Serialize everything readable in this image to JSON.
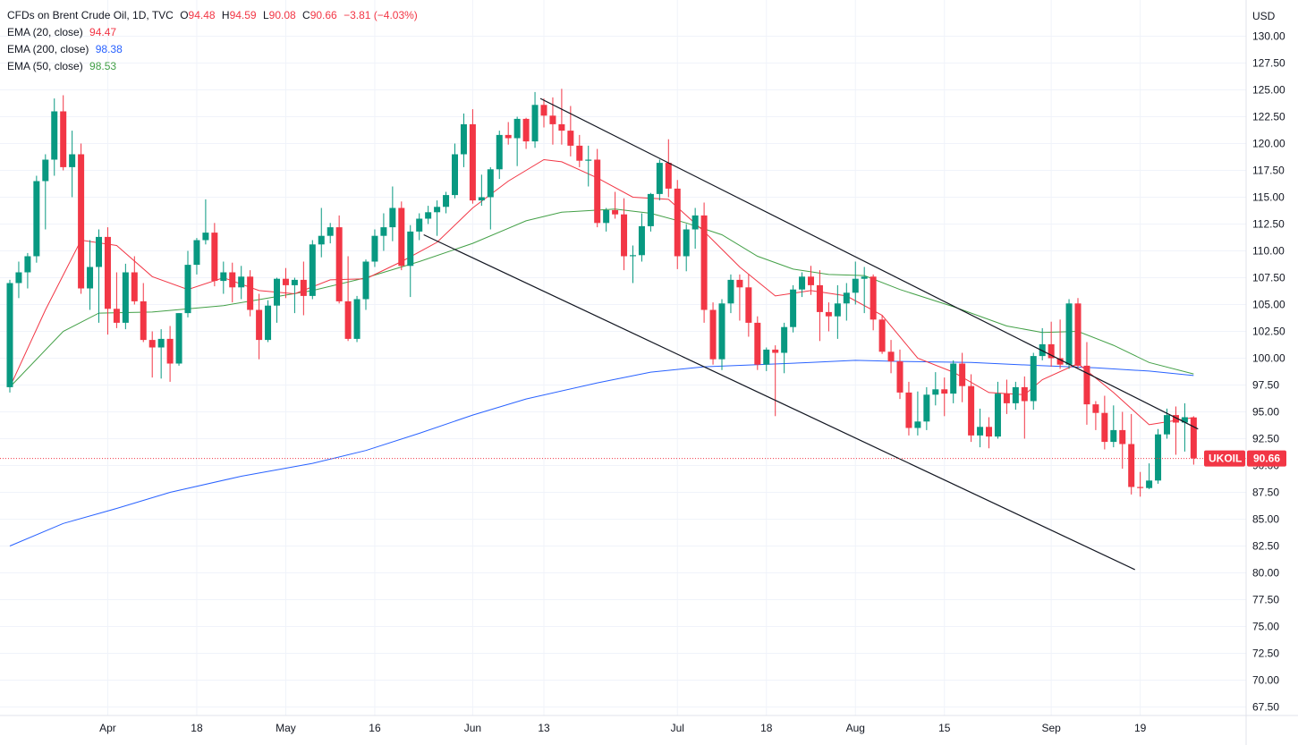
{
  "header": {
    "symbol": "CFDs on Brent Crude Oil, 1D, TVC",
    "ohlc": [
      {
        "k": "O",
        "v": "94.48"
      },
      {
        "k": "H",
        "v": "94.59"
      },
      {
        "k": "L",
        "v": "90.08"
      },
      {
        "k": "C",
        "v": "90.66"
      }
    ],
    "change": "−3.81 (−4.03%)"
  },
  "indicators": [
    {
      "label": "EMA (20, close)",
      "value": "94.47",
      "color": "#f23645"
    },
    {
      "label": "EMA (200, close)",
      "value": "98.38",
      "color": "#2962ff"
    },
    {
      "label": "EMA (50, close)",
      "value": "98.53",
      "color": "#43a047"
    }
  ],
  "price_tag": {
    "symbol": "UKOIL",
    "value": "90.66"
  },
  "chart_data": {
    "type": "candlestick",
    "currency": "USD",
    "ylim": [
      66.5,
      131
    ],
    "y_ticks": [
      "67.50",
      "70.00",
      "72.50",
      "75.00",
      "77.50",
      "80.00",
      "82.50",
      "85.00",
      "87.50",
      "90.00",
      "92.50",
      "95.00",
      "97.50",
      "100.00",
      "102.50",
      "105.00",
      "107.50",
      "110.00",
      "112.50",
      "115.00",
      "117.50",
      "120.00",
      "122.50",
      "125.00",
      "127.50",
      "130.00"
    ],
    "x_ticks": [
      {
        "label": "Apr",
        "i": 11
      },
      {
        "label": "18",
        "i": 21
      },
      {
        "label": "May",
        "i": 31
      },
      {
        "label": "16",
        "i": 41
      },
      {
        "label": "Jun",
        "i": 52
      },
      {
        "label": "13",
        "i": 60
      },
      {
        "label": "Jul",
        "i": 75
      },
      {
        "label": "18",
        "i": 85
      },
      {
        "label": "Aug",
        "i": 95
      },
      {
        "label": "15",
        "i": 105
      },
      {
        "label": "Sep",
        "i": 117
      },
      {
        "label": "19",
        "i": 127
      }
    ],
    "candles": [
      [
        0,
        97.3,
        107.3,
        96.8,
        107.0
      ],
      [
        1,
        107.0,
        109.0,
        105.6,
        108.0
      ],
      [
        2,
        108.0,
        109.8,
        106.5,
        109.5
      ],
      [
        3,
        109.5,
        117.0,
        108.9,
        116.5
      ],
      [
        4,
        116.5,
        119.0,
        112.0,
        118.5
      ],
      [
        5,
        118.5,
        124.2,
        117.0,
        123.0
      ],
      [
        6,
        123.0,
        124.5,
        117.5,
        117.8
      ],
      [
        7,
        117.8,
        121.2,
        115.0,
        119.0
      ],
      [
        8,
        119.0,
        120.0,
        106.0,
        106.5
      ],
      [
        9,
        106.5,
        111.0,
        104.5,
        108.5
      ],
      [
        10,
        108.5,
        112.0,
        103.3,
        111.3
      ],
      [
        11,
        111.3,
        112.2,
        102.2,
        104.6
      ],
      [
        12,
        104.6,
        108.0,
        102.8,
        103.3
      ],
      [
        13,
        103.3,
        108.8,
        102.7,
        108.0
      ],
      [
        14,
        108.0,
        109.5,
        105.0,
        105.3
      ],
      [
        15,
        105.3,
        107.0,
        101.5,
        101.7
      ],
      [
        16,
        101.7,
        102.5,
        98.2,
        101.0
      ],
      [
        17,
        101.0,
        102.7,
        98.1,
        101.8
      ],
      [
        18,
        101.8,
        103.0,
        97.8,
        99.5
      ],
      [
        19,
        99.5,
        104.2,
        99.3,
        104.2
      ],
      [
        20,
        104.2,
        110.0,
        103.8,
        108.7
      ],
      [
        21,
        108.7,
        111.2,
        107.8,
        111.0
      ],
      [
        22,
        111.0,
        114.8,
        110.6,
        111.7
      ],
      [
        23,
        111.7,
        112.6,
        106.7,
        107.2
      ],
      [
        24,
        107.2,
        109.0,
        106.0,
        108.0
      ],
      [
        25,
        108.0,
        108.9,
        105.2,
        106.6
      ],
      [
        26,
        106.6,
        108.6,
        105.5,
        107.6
      ],
      [
        27,
        107.6,
        108.2,
        103.9,
        104.5
      ],
      [
        28,
        104.5,
        106.0,
        99.9,
        101.7
      ],
      [
        29,
        101.7,
        105.4,
        101.5,
        104.9
      ],
      [
        30,
        104.9,
        107.5,
        103.3,
        107.4
      ],
      [
        31,
        107.4,
        108.4,
        105.6,
        106.8
      ],
      [
        32,
        106.8,
        107.5,
        104.2,
        107.3
      ],
      [
        33,
        107.3,
        109.0,
        104.0,
        105.8
      ],
      [
        34,
        105.8,
        111.0,
        105.5,
        110.6
      ],
      [
        35,
        110.6,
        114.0,
        109.4,
        111.4
      ],
      [
        36,
        111.4,
        112.6,
        110.7,
        112.2
      ],
      [
        37,
        112.2,
        113.3,
        105.1,
        105.3
      ],
      [
        38,
        105.3,
        109.5,
        101.6,
        101.8
      ],
      [
        39,
        101.8,
        105.8,
        101.5,
        105.5
      ],
      [
        40,
        105.5,
        109.2,
        104.5,
        109.0
      ],
      [
        41,
        109.0,
        112.0,
        108.5,
        111.4
      ],
      [
        42,
        111.4,
        113.5,
        110.0,
        112.2
      ],
      [
        43,
        112.2,
        116.0,
        110.9,
        114.0
      ],
      [
        44,
        114.0,
        114.6,
        108.2,
        108.6
      ],
      [
        45,
        108.6,
        112.4,
        105.7,
        111.8
      ],
      [
        46,
        111.8,
        113.5,
        111.0,
        113.0
      ],
      [
        47,
        113.0,
        114.2,
        112.5,
        113.6
      ],
      [
        48,
        113.6,
        114.7,
        111.4,
        114.1
      ],
      [
        49,
        114.1,
        115.5,
        113.5,
        115.2
      ],
      [
        50,
        115.2,
        120.0,
        114.9,
        119.0
      ],
      [
        51,
        119.0,
        122.8,
        117.8,
        121.8
      ],
      [
        52,
        121.8,
        123.2,
        114.4,
        114.7
      ],
      [
        53,
        114.7,
        117.1,
        114.2,
        115.0
      ],
      [
        54,
        115.0,
        117.8,
        112.0,
        117.6
      ],
      [
        55,
        117.6,
        121.2,
        116.7,
        120.8
      ],
      [
        56,
        120.8,
        122.0,
        119.9,
        120.5
      ],
      [
        57,
        120.5,
        122.5,
        117.9,
        122.3
      ],
      [
        58,
        122.3,
        122.4,
        119.5,
        120.2
      ],
      [
        59,
        120.2,
        124.8,
        119.6,
        123.6
      ],
      [
        60,
        123.6,
        124.2,
        121.5,
        122.6
      ],
      [
        61,
        122.6,
        124.3,
        119.9,
        121.8
      ],
      [
        62,
        121.8,
        125.1,
        119.9,
        121.2
      ],
      [
        63,
        121.2,
        123.5,
        118.8,
        119.8
      ],
      [
        64,
        119.8,
        120.8,
        117.8,
        118.4
      ],
      [
        65,
        118.4,
        119.8,
        116.0,
        118.5
      ],
      [
        66,
        118.5,
        119.5,
        112.2,
        112.6
      ],
      [
        67,
        112.6,
        114.0,
        111.8,
        113.8
      ],
      [
        68,
        113.8,
        115.5,
        113.0,
        113.4
      ],
      [
        69,
        113.4,
        114.9,
        108.2,
        109.5
      ],
      [
        70,
        109.5,
        110.5,
        107.0,
        109.6
      ],
      [
        71,
        109.6,
        113.5,
        109.0,
        112.3
      ],
      [
        72,
        112.3,
        115.4,
        111.8,
        115.3
      ],
      [
        73,
        115.3,
        118.5,
        114.7,
        118.2
      ],
      [
        74,
        118.2,
        120.4,
        115.0,
        115.8
      ],
      [
        75,
        115.8,
        116.6,
        108.3,
        109.5
      ],
      [
        76,
        109.5,
        112.5,
        108.1,
        112.0
      ],
      [
        77,
        112.0,
        114.0,
        110.2,
        113.3
      ],
      [
        78,
        113.3,
        114.5,
        103.3,
        104.5
      ],
      [
        79,
        104.5,
        105.2,
        99.4,
        99.9
      ],
      [
        80,
        99.9,
        105.5,
        98.9,
        105.1
      ],
      [
        81,
        105.1,
        107.8,
        104.2,
        107.3
      ],
      [
        82,
        107.3,
        107.8,
        103.5,
        106.6
      ],
      [
        83,
        106.6,
        107.8,
        102.0,
        103.3
      ],
      [
        84,
        103.3,
        103.9,
        98.9,
        99.4
      ],
      [
        85,
        99.4,
        101.0,
        98.8,
        100.8
      ],
      [
        86,
        100.8,
        101.2,
        94.6,
        100.5
      ],
      [
        87,
        100.5,
        103.3,
        98.6,
        102.9
      ],
      [
        88,
        102.9,
        106.8,
        102.4,
        106.4
      ],
      [
        89,
        106.4,
        108.0,
        105.7,
        107.6
      ],
      [
        90,
        107.6,
        108.6,
        105.9,
        106.8
      ],
      [
        91,
        106.8,
        108.2,
        101.6,
        104.3
      ],
      [
        92,
        104.3,
        105.2,
        102.5,
        103.9
      ],
      [
        93,
        103.9,
        106.8,
        101.8,
        105.1
      ],
      [
        94,
        105.1,
        107.0,
        103.5,
        106.1
      ],
      [
        95,
        106.1,
        109.0,
        105.0,
        107.4
      ],
      [
        96,
        107.4,
        108.5,
        104.2,
        107.6
      ],
      [
        97,
        107.6,
        107.8,
        102.6,
        103.6
      ],
      [
        98,
        103.6,
        104.0,
        100.4,
        100.6
      ],
      [
        99,
        100.6,
        101.7,
        98.6,
        99.7
      ],
      [
        100,
        99.7,
        100.8,
        96.2,
        96.8
      ],
      [
        101,
        96.8,
        97.8,
        92.8,
        93.5
      ],
      [
        102,
        93.5,
        96.9,
        92.8,
        94.1
      ],
      [
        103,
        94.1,
        97.3,
        93.3,
        96.6
      ],
      [
        104,
        96.6,
        98.7,
        95.6,
        97.1
      ],
      [
        105,
        97.1,
        98.2,
        94.6,
        96.7
      ],
      [
        106,
        96.7,
        99.8,
        95.8,
        99.5
      ],
      [
        107,
        99.5,
        100.5,
        95.9,
        97.4
      ],
      [
        108,
        97.4,
        98.5,
        92.2,
        92.8
      ],
      [
        109,
        92.8,
        95.3,
        91.7,
        93.6
      ],
      [
        110,
        93.6,
        94.5,
        91.6,
        92.7
      ],
      [
        111,
        92.7,
        97.8,
        92.5,
        96.7
      ],
      [
        112,
        96.7,
        98.0,
        94.8,
        95.8
      ],
      [
        113,
        95.8,
        97.8,
        95.2,
        97.3
      ],
      [
        114,
        97.3,
        98.3,
        92.5,
        96.0
      ],
      [
        115,
        96.0,
        100.5,
        95.2,
        100.2
      ],
      [
        116,
        100.2,
        102.8,
        99.8,
        101.3
      ],
      [
        117,
        101.3,
        103.4,
        99.2,
        100.0
      ],
      [
        118,
        100.0,
        103.6,
        99.0,
        99.4
      ],
      [
        119,
        99.4,
        105.5,
        99.0,
        105.1
      ],
      [
        120,
        105.1,
        105.6,
        99.1,
        99.3
      ],
      [
        121,
        99.3,
        101.5,
        93.8,
        95.7
      ],
      [
        122,
        95.7,
        96.0,
        93.3,
        94.9
      ],
      [
        123,
        94.9,
        96.5,
        91.5,
        92.2
      ],
      [
        124,
        92.2,
        95.6,
        91.7,
        93.3
      ],
      [
        125,
        93.3,
        95.0,
        89.7,
        92.0
      ],
      [
        126,
        92.0,
        94.8,
        87.3,
        88.0
      ],
      [
        127,
        88.0,
        89.4,
        87.1,
        87.9
      ],
      [
        128,
        87.9,
        90.2,
        87.8,
        88.6
      ],
      [
        129,
        88.6,
        93.4,
        88.3,
        92.9
      ],
      [
        130,
        92.9,
        95.3,
        92.5,
        94.7
      ],
      [
        131,
        94.7,
        95.5,
        91.0,
        94.0
      ],
      [
        132,
        94.0,
        95.8,
        91.3,
        94.5
      ],
      [
        133,
        94.48,
        94.59,
        90.08,
        90.66
      ]
    ],
    "ema20": [
      [
        0,
        97.3
      ],
      [
        4,
        104.5
      ],
      [
        8,
        111.0
      ],
      [
        12,
        110.5
      ],
      [
        16,
        107.6
      ],
      [
        20,
        106.4
      ],
      [
        24,
        107.5
      ],
      [
        28,
        106.3
      ],
      [
        32,
        106.0
      ],
      [
        36,
        107.3
      ],
      [
        40,
        107.4
      ],
      [
        44,
        109.0
      ],
      [
        48,
        110.8
      ],
      [
        52,
        114.0
      ],
      [
        56,
        116.5
      ],
      [
        60,
        118.5
      ],
      [
        62,
        118.3
      ],
      [
        66,
        116.8
      ],
      [
        70,
        115.0
      ],
      [
        74,
        114.8
      ],
      [
        78,
        111.8
      ],
      [
        82,
        108.5
      ],
      [
        86,
        105.8
      ],
      [
        90,
        106.3
      ],
      [
        94,
        105.8
      ],
      [
        98,
        104.0
      ],
      [
        102,
        100.0
      ],
      [
        106,
        98.7
      ],
      [
        110,
        96.8
      ],
      [
        114,
        96.6
      ],
      [
        116,
        98.0
      ],
      [
        120,
        99.5
      ],
      [
        124,
        96.8
      ],
      [
        128,
        93.8
      ],
      [
        133,
        94.47
      ]
    ],
    "ema50": [
      [
        0,
        97.3
      ],
      [
        6,
        102.5
      ],
      [
        10,
        104.2
      ],
      [
        16,
        104.3
      ],
      [
        24,
        104.9
      ],
      [
        34,
        106.3
      ],
      [
        40,
        107.5
      ],
      [
        46,
        109.0
      ],
      [
        52,
        110.7
      ],
      [
        58,
        112.8
      ],
      [
        62,
        113.6
      ],
      [
        68,
        113.9
      ],
      [
        72,
        113.5
      ],
      [
        76,
        112.6
      ],
      [
        80,
        111.5
      ],
      [
        84,
        109.5
      ],
      [
        88,
        108.3
      ],
      [
        92,
        107.8
      ],
      [
        96,
        107.7
      ],
      [
        100,
        106.4
      ],
      [
        106,
        104.8
      ],
      [
        112,
        103.0
      ],
      [
        116,
        102.4
      ],
      [
        120,
        102.5
      ],
      [
        124,
        101.2
      ],
      [
        128,
        99.6
      ],
      [
        133,
        98.53
      ]
    ],
    "ema200": [
      [
        0,
        82.5
      ],
      [
        6,
        84.6
      ],
      [
        12,
        86.0
      ],
      [
        18,
        87.5
      ],
      [
        26,
        89.0
      ],
      [
        34,
        90.2
      ],
      [
        40,
        91.4
      ],
      [
        46,
        93.0
      ],
      [
        52,
        94.7
      ],
      [
        58,
        96.2
      ],
      [
        66,
        97.7
      ],
      [
        72,
        98.7
      ],
      [
        78,
        99.2
      ],
      [
        84,
        99.4
      ],
      [
        90,
        99.6
      ],
      [
        95,
        99.8
      ],
      [
        100,
        99.7
      ],
      [
        108,
        99.6
      ],
      [
        116,
        99.3
      ],
      [
        122,
        99.1
      ],
      [
        128,
        98.8
      ],
      [
        133,
        98.38
      ]
    ],
    "trendlines": [
      {
        "from": [
          59.6,
          124.2
        ],
        "to": [
          133.5,
          93.4
        ],
        "color": "#131722"
      },
      {
        "from": [
          46.5,
          111.5
        ],
        "to": [
          126.4,
          80.3
        ],
        "color": "#131722"
      }
    ],
    "up_color": "#089981",
    "down_color": "#f23645"
  }
}
